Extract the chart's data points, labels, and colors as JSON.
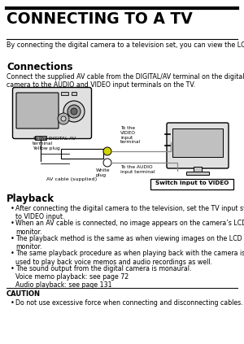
{
  "title": "CONNECTING TO A TV",
  "intro": "By connecting the digital camera to a television set, you can view the LCD monitor display on the TV screen.",
  "section1_title": "Connections",
  "section1_text": "Connect the supplied AV cable from the DIGITAL/AV terminal on the digital\ncamera to the AUDIO and VIDEO input terminals on the TV.",
  "section2_title": "Playback",
  "bullets": [
    "After connecting the digital camera to the television, set the TV input switch\nto VIDEO input.",
    "When an AV cable is connected, no image appears on the camera’s LCD\nmonitor.",
    "The playback method is the same as when viewing images on the LCD\nmonitor.",
    "The same playback procedure as when playing back with the camera is\nused to play back voice memos and audio recordings as well.",
    "The sound output from the digital camera is monaural.\nVoice memo playback: see page 72\nAudio playback: see page 131"
  ],
  "caution_title": "CAUTION",
  "caution_bullet": "Do not use excessive force when connecting and disconnecting cables.",
  "bg_color": "#ffffff",
  "text_color": "#000000"
}
